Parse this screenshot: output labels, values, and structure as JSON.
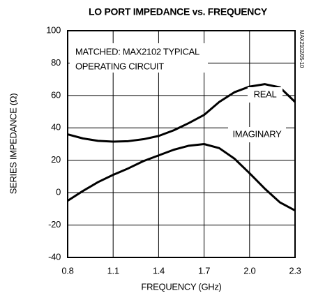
{
  "chart_data": {
    "type": "line",
    "title": "LO PORT IMPEDANCE vs. FREQUENCY",
    "xlabel": "FREQUENCY (GHz)",
    "ylabel": "SERIES IMPEDANCE (Ω)",
    "annotations": [
      "MATCHED: MAX2102 TYPICAL",
      "OPERATING CIRCUIT"
    ],
    "side_note": "MAX2102/05-10",
    "x": [
      0.8,
      0.9,
      1.0,
      1.1,
      1.2,
      1.3,
      1.4,
      1.5,
      1.6,
      1.7,
      1.8,
      1.9,
      2.0,
      2.1,
      2.2,
      2.3
    ],
    "series": [
      {
        "name": "REAL",
        "color": "#000000",
        "values": [
          36,
          33.5,
          32,
          31.5,
          31.8,
          33,
          35,
          38.5,
          43,
          48,
          56,
          62,
          65.5,
          67,
          65,
          56
        ]
      },
      {
        "name": "IMAGINARY",
        "color": "#000000",
        "values": [
          -5,
          1,
          6.5,
          11,
          15,
          19.5,
          23,
          26.5,
          29,
          30,
          27.5,
          21,
          12,
          2.5,
          -6,
          -11
        ]
      }
    ],
    "xlim": [
      0.8,
      2.3
    ],
    "xticks": [
      0.8,
      1.1,
      1.4,
      1.7,
      {
        "value": 2,
        "label": "2.0"
      },
      2.3
    ],
    "ylim": [
      -40,
      100
    ],
    "yticks": [
      -40,
      -20,
      0,
      20,
      40,
      60,
      80,
      100
    ],
    "grid": true
  }
}
